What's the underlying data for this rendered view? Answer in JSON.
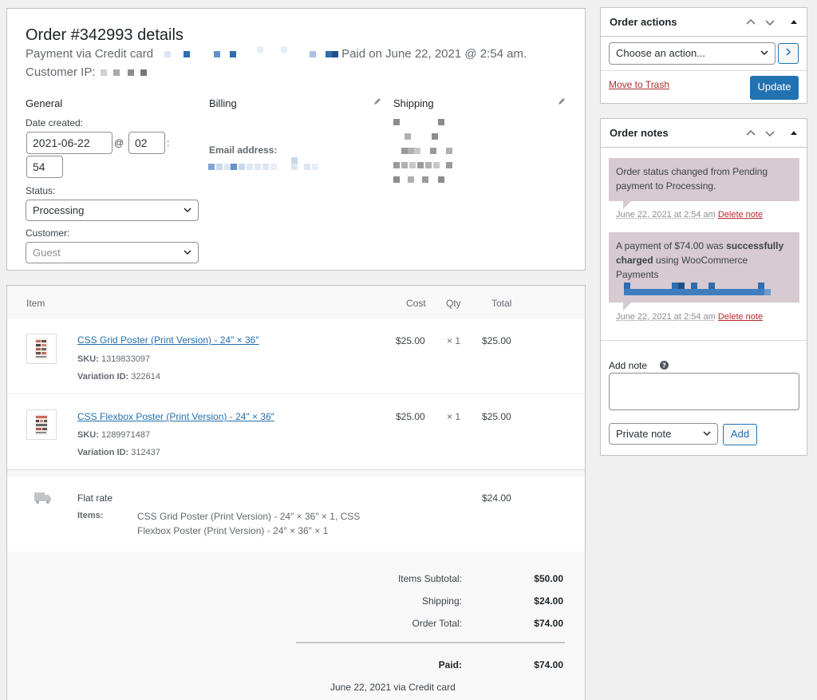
{
  "order": {
    "title": "Order #342993 details",
    "payment_prefix": "Payment via Credit card",
    "paid_on": "Paid on June 22, 2021 @ 2:54 am.",
    "customer_ip_label": "Customer IP:"
  },
  "general": {
    "heading": "General",
    "date_created_label": "Date created:",
    "date_value": "2021-06-22",
    "at_symbol": "@",
    "hour_value": "02",
    "colon": ":",
    "minute_value": "54",
    "status_label": "Status:",
    "status_value": "Processing",
    "customer_label": "Customer:",
    "customer_value": "Guest"
  },
  "billing": {
    "heading": "Billing",
    "email_label": "Email address:"
  },
  "shipping": {
    "heading": "Shipping"
  },
  "items_table": {
    "headers": {
      "item": "Item",
      "cost": "Cost",
      "qty": "Qty",
      "total": "Total"
    },
    "rows": [
      {
        "name": "CSS Grid Poster (Print Version) - 24″ × 36″",
        "sku_label": "SKU:",
        "sku": "1319833097",
        "variation_label": "Variation ID:",
        "variation": "322614",
        "cost": "$25.00",
        "qty": "× 1",
        "total": "$25.00"
      },
      {
        "name": "CSS Flexbox Poster (Print Version) - 24″ × 36″",
        "sku_label": "SKU:",
        "sku": "1289971487",
        "variation_label": "Variation ID:",
        "variation": "312437",
        "cost": "$25.00",
        "qty": "× 1",
        "total": "$25.00"
      }
    ],
    "shipping_row": {
      "method": "Flat rate",
      "items_label": "Items:",
      "items_line1": "CSS Grid Poster (Print Version) - 24″ × 36″ × 1, CSS",
      "items_line2": "Flexbox Poster (Print Version) - 24″ × 36″ × 1",
      "total": "$24.00"
    }
  },
  "totals": {
    "items_subtotal_label": "Items Subtotal:",
    "items_subtotal": "$50.00",
    "shipping_label": "Shipping:",
    "shipping": "$24.00",
    "order_total_label": "Order Total:",
    "order_total": "$74.00",
    "paid_label": "Paid:",
    "paid": "$74.00",
    "paid_via": "June 22, 2021 via Credit card"
  },
  "order_actions": {
    "title": "Order actions",
    "select_value": "Choose an action...",
    "trash_link": "Move to Trash",
    "update_button": "Update"
  },
  "order_notes": {
    "title": "Order notes",
    "note1_text": "Order status changed from Pending payment to Processing.",
    "note1_date": "June 22, 2021 at 2:54 am",
    "note2_prefix": "A payment of $74.00 was ",
    "note2_bold": "successfully charged",
    "note2_suffix": " using WooCommerce Payments",
    "note2_date": "June 22, 2021 at 2:54 am",
    "delete_label": "Delete note",
    "add_note_label": "Add note",
    "note_type_value": "Private note",
    "add_button": "Add"
  },
  "colors": {
    "primary": "#2271b1",
    "danger": "#b32d2e",
    "note_bg": "#d7cad2",
    "background": "#f0f0f1"
  },
  "icons": {
    "pencil": "pencil-icon",
    "chevron": "chevron-down-icon",
    "truck": "truck-icon",
    "help": "help-icon"
  }
}
